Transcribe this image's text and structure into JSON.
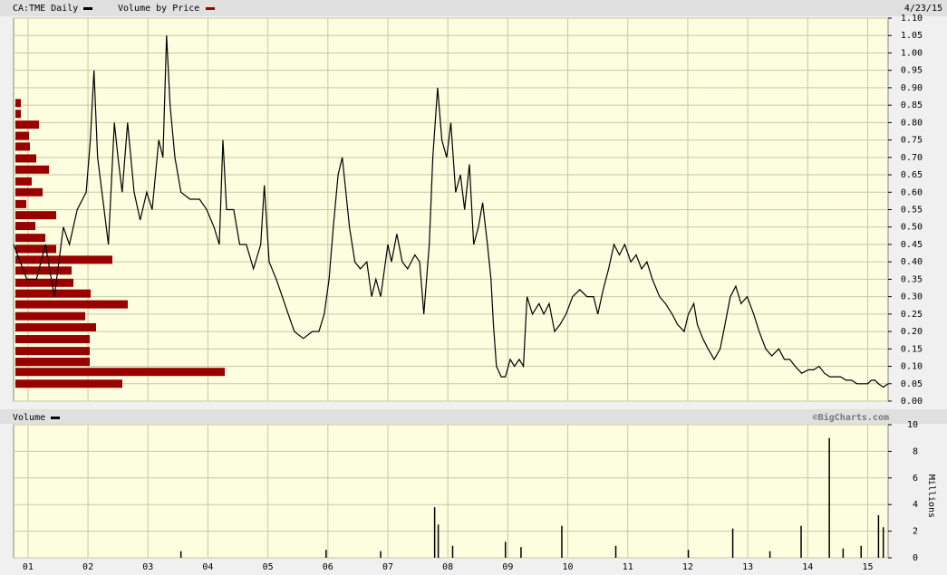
{
  "chart_data": [
    {
      "type": "line",
      "date": "4/23/15",
      "xlim": [
        0.76,
        15.34
      ],
      "ylim": [
        0,
        1.1
      ],
      "yticks": [
        {
          "value": 0,
          "label": "0.00"
        },
        {
          "value": 0.05,
          "label": "0.05"
        },
        {
          "value": 0.1,
          "label": "0.10"
        },
        {
          "value": 0.15,
          "label": "0.15"
        },
        {
          "value": 0.2,
          "label": "0.20"
        },
        {
          "value": 0.25,
          "label": "0.25"
        },
        {
          "value": 0.3,
          "label": "0.30"
        },
        {
          "value": 0.35,
          "label": "0.35"
        },
        {
          "value": 0.4,
          "label": "0.40"
        },
        {
          "value": 0.45,
          "label": "0.45"
        },
        {
          "value": 0.5,
          "label": "0.50"
        },
        {
          "value": 0.55,
          "label": "0.55"
        },
        {
          "value": 0.6,
          "label": "0.60"
        },
        {
          "value": 0.65,
          "label": "0.65"
        },
        {
          "value": 0.7,
          "label": "0.70"
        },
        {
          "value": 0.75,
          "label": "0.75"
        },
        {
          "value": 0.8,
          "label": "0.80"
        },
        {
          "value": 0.85,
          "label": "0.85"
        },
        {
          "value": 0.9,
          "label": "0.90"
        },
        {
          "value": 0.95,
          "label": "0.95"
        },
        {
          "value": 1.0,
          "label": "1.00"
        },
        {
          "value": 1.05,
          "label": "1.05"
        },
        {
          "value": 1.1,
          "label": "1.10"
        }
      ],
      "grid": true,
      "series": [
        {
          "name": "CA:TME Daily",
          "color": "#000000",
          "x": [
            0.76,
            0.98,
            1.14,
            1.29,
            1.44,
            1.59,
            1.69,
            1.82,
            1.97,
            2.04,
            2.1,
            2.16,
            2.27,
            2.34,
            2.44,
            2.5,
            2.57,
            2.66,
            2.77,
            2.87,
            2.98,
            3.07,
            3.18,
            3.25,
            3.31,
            3.37,
            3.45,
            3.55,
            3.7,
            3.86,
            3.98,
            4.1,
            4.19,
            4.25,
            4.31,
            4.43,
            4.53,
            4.64,
            4.76,
            4.88,
            4.94,
            5.02,
            5.14,
            5.24,
            5.34,
            5.44,
            5.59,
            5.74,
            5.85,
            5.94,
            6.02,
            6.09,
            6.17,
            6.24,
            6.3,
            6.36,
            6.45,
            6.54,
            6.65,
            6.73,
            6.8,
            6.88,
            7.0,
            7.06,
            7.15,
            7.24,
            7.33,
            7.45,
            7.53,
            7.6,
            7.69,
            7.75,
            7.83,
            7.9,
            7.98,
            8.05,
            8.13,
            8.21,
            8.28,
            8.36,
            8.43,
            8.51,
            8.58,
            8.66,
            8.72,
            8.76,
            8.81,
            8.89,
            8.96,
            9.04,
            9.11,
            9.19,
            9.26,
            9.32,
            9.41,
            9.52,
            9.6,
            9.69,
            9.78,
            9.87,
            9.97,
            10.08,
            10.2,
            10.32,
            10.43,
            10.5,
            10.59,
            10.68,
            10.77,
            10.86,
            10.95,
            11.05,
            11.14,
            11.23,
            11.32,
            11.41,
            11.53,
            11.63,
            11.74,
            11.83,
            11.94,
            12.01,
            12.1,
            12.16,
            12.25,
            12.34,
            12.44,
            12.54,
            12.62,
            12.71,
            12.8,
            12.89,
            12.99,
            13.1,
            13.19,
            13.3,
            13.4,
            13.52,
            13.61,
            13.7,
            13.79,
            13.9,
            14.01,
            14.1,
            14.19,
            14.28,
            14.37,
            14.46,
            14.55,
            14.64,
            14.73,
            14.82,
            14.91,
            15.0,
            15.06,
            15.12,
            15.18,
            15.26,
            15.34
          ],
          "values": [
            0.45,
            0.35,
            0.35,
            0.45,
            0.3,
            0.5,
            0.45,
            0.55,
            0.6,
            0.75,
            0.95,
            0.7,
            0.55,
            0.45,
            0.8,
            0.7,
            0.6,
            0.8,
            0.6,
            0.52,
            0.6,
            0.55,
            0.75,
            0.7,
            1.05,
            0.85,
            0.7,
            0.6,
            0.58,
            0.58,
            0.55,
            0.5,
            0.45,
            0.75,
            0.55,
            0.55,
            0.45,
            0.45,
            0.38,
            0.45,
            0.62,
            0.4,
            0.35,
            0.3,
            0.25,
            0.2,
            0.18,
            0.2,
            0.2,
            0.25,
            0.35,
            0.5,
            0.65,
            0.7,
            0.6,
            0.5,
            0.4,
            0.38,
            0.4,
            0.3,
            0.35,
            0.3,
            0.45,
            0.4,
            0.48,
            0.4,
            0.38,
            0.42,
            0.4,
            0.25,
            0.45,
            0.7,
            0.9,
            0.75,
            0.7,
            0.8,
            0.6,
            0.65,
            0.55,
            0.68,
            0.45,
            0.5,
            0.57,
            0.45,
            0.35,
            0.22,
            0.1,
            0.07,
            0.07,
            0.12,
            0.1,
            0.12,
            0.1,
            0.3,
            0.25,
            0.28,
            0.25,
            0.28,
            0.2,
            0.22,
            0.25,
            0.3,
            0.32,
            0.3,
            0.3,
            0.25,
            0.32,
            0.38,
            0.45,
            0.42,
            0.45,
            0.4,
            0.42,
            0.38,
            0.4,
            0.35,
            0.3,
            0.28,
            0.25,
            0.22,
            0.2,
            0.25,
            0.28,
            0.22,
            0.18,
            0.15,
            0.12,
            0.15,
            0.22,
            0.3,
            0.33,
            0.28,
            0.3,
            0.25,
            0.2,
            0.15,
            0.13,
            0.15,
            0.12,
            0.12,
            0.1,
            0.08,
            0.09,
            0.09,
            0.1,
            0.08,
            0.07,
            0.07,
            0.07,
            0.06,
            0.06,
            0.05,
            0.05,
            0.05,
            0.06,
            0.06,
            0.05,
            0.04,
            0.05
          ]
        }
      ],
      "volume_by_price": {
        "name": "Volume by Price",
        "color": "#990000",
        "prices": [
          0.05,
          0.084,
          0.113,
          0.144,
          0.178,
          0.212,
          0.244,
          0.278,
          0.309,
          0.34,
          0.375,
          0.406,
          0.437,
          0.469,
          0.503,
          0.534,
          0.566,
          0.6,
          0.631,
          0.665,
          0.697,
          0.731,
          0.762,
          0.794,
          0.825,
          0.856
        ],
        "values": [
          118,
          231,
          82,
          82,
          82,
          89,
          77,
          124,
          83,
          64,
          62,
          107,
          45,
          33,
          22,
          45,
          12,
          30,
          18,
          37,
          23,
          16,
          15,
          26,
          6,
          6
        ]
      }
    },
    {
      "type": "bar",
      "source": "©BigCharts.com",
      "ylabel": "Millions",
      "xlim": [
        0.76,
        15.34
      ],
      "xticks": [
        {
          "value": 1,
          "label": "01"
        },
        {
          "value": 2,
          "label": "02"
        },
        {
          "value": 3,
          "label": "03"
        },
        {
          "value": 4,
          "label": "04"
        },
        {
          "value": 5,
          "label": "05"
        },
        {
          "value": 6,
          "label": "06"
        },
        {
          "value": 7,
          "label": "07"
        },
        {
          "value": 8,
          "label": "08"
        },
        {
          "value": 9,
          "label": "09"
        },
        {
          "value": 10,
          "label": "10"
        },
        {
          "value": 11,
          "label": "11"
        },
        {
          "value": 12,
          "label": "12"
        },
        {
          "value": 13,
          "label": "13"
        },
        {
          "value": 14,
          "label": "14"
        },
        {
          "value": 15,
          "label": "15"
        }
      ],
      "ylim": [
        0,
        10
      ],
      "yticks": [
        0,
        2,
        4,
        6,
        8,
        10
      ],
      "grid": true,
      "series": [
        {
          "name": "Volume",
          "color": "#000000",
          "x": [
            3.55,
            5.97,
            6.88,
            7.78,
            7.84,
            8.08,
            8.96,
            9.22,
            9.9,
            10.8,
            12.01,
            12.75,
            13.37,
            13.89,
            14.36,
            14.59,
            14.89,
            15.18,
            15.26
          ],
          "values": [
            0.5,
            0.6,
            0.5,
            3.8,
            2.5,
            0.9,
            1.2,
            0.8,
            2.4,
            0.9,
            0.6,
            2.2,
            0.5,
            2.4,
            9.0,
            0.7,
            0.9,
            3.2,
            2.3
          ]
        }
      ]
    }
  ]
}
